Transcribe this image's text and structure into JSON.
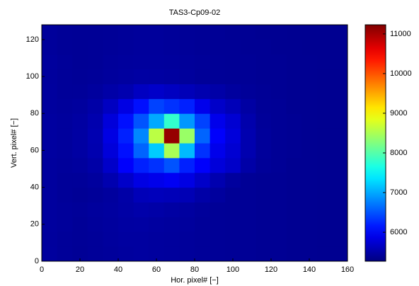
{
  "chart_data": {
    "type": "heatmap",
    "title": "TAS3-Cp09-02",
    "x_label": "Hor. pixel# [−]",
    "y_label": "Vert. pixel# [−]",
    "colormap": "jet",
    "xlim": [
      0,
      160
    ],
    "ylim": [
      0,
      128
    ],
    "xticks": [
      0,
      20,
      40,
      60,
      80,
      100,
      120,
      140,
      160
    ],
    "yticks": [
      0,
      20,
      40,
      60,
      80,
      100,
      120
    ],
    "clim": [
      5270,
      11230
    ],
    "colorbar_ticks": [
      6000,
      7000,
      8000,
      9000,
      10000,
      11000
    ],
    "xbins": [
      0,
      8,
      16,
      24,
      32,
      40,
      48,
      56,
      64,
      72,
      80,
      88,
      96,
      104,
      112,
      120,
      128,
      136,
      144,
      152,
      160
    ],
    "ybins": [
      0,
      8,
      16,
      24,
      32,
      40,
      48,
      56,
      64,
      72,
      80,
      88,
      96,
      104,
      112,
      120,
      128
    ],
    "z": [
      [
        5450,
        5420,
        5400,
        5420,
        5430,
        5450,
        5460,
        5450,
        5440,
        5430,
        5420,
        5410,
        5400,
        5400,
        5390,
        5390,
        5380,
        5380,
        5370,
        5370
      ],
      [
        5440,
        5420,
        5410,
        5420,
        5440,
        5460,
        5460,
        5450,
        5440,
        5430,
        5420,
        5410,
        5400,
        5400,
        5390,
        5390,
        5380,
        5380,
        5370,
        5370
      ],
      [
        5450,
        5430,
        5410,
        5430,
        5450,
        5470,
        5480,
        5460,
        5450,
        5440,
        5420,
        5410,
        5400,
        5400,
        5390,
        5390,
        5380,
        5380,
        5370,
        5370
      ],
      [
        5450,
        5430,
        5420,
        5440,
        5460,
        5490,
        5520,
        5500,
        5480,
        5460,
        5430,
        5410,
        5400,
        5400,
        5390,
        5390,
        5380,
        5380,
        5370,
        5370
      ],
      [
        5450,
        5420,
        5400,
        5420,
        5450,
        5500,
        5600,
        5620,
        5600,
        5580,
        5500,
        5450,
        5400,
        5400,
        5390,
        5390,
        5380,
        5380,
        5370,
        5370
      ],
      [
        5450,
        5420,
        5420,
        5450,
        5550,
        5700,
        5850,
        5900,
        5950,
        5850,
        5700,
        5550,
        5450,
        5400,
        5390,
        5390,
        5380,
        5380,
        5370,
        5370
      ],
      [
        5450,
        5430,
        5450,
        5500,
        5700,
        6000,
        6200,
        6300,
        6500,
        6200,
        6000,
        5800,
        5700,
        5500,
        5420,
        5400,
        5380,
        5380,
        5370,
        5370
      ],
      [
        5460,
        5440,
        5480,
        5550,
        5800,
        6100,
        6600,
        7200,
        8500,
        7100,
        6300,
        5900,
        5750,
        5550,
        5430,
        5400,
        5390,
        5380,
        5370,
        5370
      ],
      [
        5460,
        5440,
        5480,
        5560,
        5850,
        6200,
        6800,
        8600,
        11100,
        8400,
        6600,
        6000,
        5800,
        5550,
        5430,
        5400,
        5390,
        5380,
        5370,
        5370
      ],
      [
        5460,
        5440,
        5470,
        5540,
        5800,
        6100,
        6500,
        7000,
        7800,
        6900,
        6400,
        5900,
        5750,
        5530,
        5420,
        5400,
        5390,
        5380,
        5370,
        5370
      ],
      [
        5450,
        5430,
        5450,
        5500,
        5650,
        5850,
        6100,
        6400,
        6300,
        6200,
        5900,
        5700,
        5600,
        5480,
        5410,
        5400,
        5380,
        5380,
        5370,
        5370
      ],
      [
        5450,
        5420,
        5420,
        5450,
        5500,
        5550,
        5650,
        5700,
        5650,
        5600,
        5550,
        5500,
        5450,
        5420,
        5400,
        5390,
        5380,
        5380,
        5370,
        5370
      ],
      [
        5440,
        5420,
        5410,
        5420,
        5440,
        5460,
        5480,
        5470,
        5460,
        5440,
        5420,
        5410,
        5400,
        5400,
        5390,
        5390,
        5380,
        5380,
        5370,
        5370
      ],
      [
        5440,
        5420,
        5400,
        5410,
        5430,
        5440,
        5450,
        5450,
        5440,
        5430,
        5420,
        5410,
        5400,
        5400,
        5390,
        5390,
        5380,
        5380,
        5370,
        5370
      ],
      [
        5430,
        5410,
        5400,
        5410,
        5420,
        5430,
        5440,
        5440,
        5430,
        5420,
        5410,
        5400,
        5400,
        5390,
        5390,
        5380,
        5380,
        5370,
        5370,
        5370
      ],
      [
        5430,
        5410,
        5400,
        5400,
        5410,
        5420,
        5430,
        5430,
        5420,
        5410,
        5400,
        5400,
        5390,
        5390,
        5380,
        5380,
        5370,
        5370,
        5370,
        5370
      ]
    ]
  }
}
